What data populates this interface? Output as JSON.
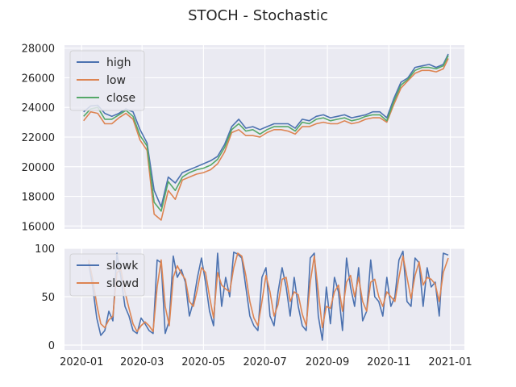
{
  "chart_data": [
    {
      "type": "line",
      "title": "STOCH - Stochastic",
      "xlabel": "",
      "ylabel": "",
      "xlim": [
        "2019-12-15",
        "2021-01-15"
      ],
      "ylim": [
        15800,
        28200
      ],
      "yticks": [
        16000,
        18000,
        20000,
        22000,
        24000,
        26000,
        28000
      ],
      "grid": true,
      "legend_position": "top-left",
      "x": [
        "2020-01-03",
        "2020-01-10",
        "2020-01-17",
        "2020-01-24",
        "2020-01-31",
        "2020-02-07",
        "2020-02-14",
        "2020-02-21",
        "2020-02-28",
        "2020-03-06",
        "2020-03-13",
        "2020-03-20",
        "2020-03-27",
        "2020-04-03",
        "2020-04-10",
        "2020-04-17",
        "2020-04-24",
        "2020-05-01",
        "2020-05-08",
        "2020-05-15",
        "2020-05-22",
        "2020-05-29",
        "2020-06-05",
        "2020-06-12",
        "2020-06-19",
        "2020-06-26",
        "2020-07-03",
        "2020-07-10",
        "2020-07-17",
        "2020-07-24",
        "2020-07-31",
        "2020-08-07",
        "2020-08-14",
        "2020-08-21",
        "2020-08-28",
        "2020-09-04",
        "2020-09-11",
        "2020-09-18",
        "2020-09-25",
        "2020-10-02",
        "2020-10-09",
        "2020-10-16",
        "2020-10-23",
        "2020-10-30",
        "2020-11-06",
        "2020-11-13",
        "2020-11-20",
        "2020-11-27",
        "2020-12-04",
        "2020-12-11",
        "2020-12-18",
        "2020-12-25",
        "2020-12-30"
      ],
      "series": [
        {
          "name": "high",
          "color": "#4c72b0",
          "values": [
            23700,
            24100,
            24150,
            23600,
            23400,
            23600,
            23900,
            23700,
            22500,
            21600,
            18400,
            17300,
            19300,
            18900,
            19600,
            19800,
            20000,
            20200,
            20400,
            20700,
            21500,
            22700,
            23200,
            22600,
            22700,
            22500,
            22700,
            22900,
            22900,
            22900,
            22600,
            23200,
            23100,
            23400,
            23500,
            23300,
            23400,
            23500,
            23300,
            23400,
            23500,
            23700,
            23700,
            23300,
            24600,
            25700,
            26000,
            26700,
            26800,
            26900,
            26700,
            26900,
            27600
          ]
        },
        {
          "name": "low",
          "color": "#dd8452",
          "values": [
            23100,
            23700,
            23600,
            22900,
            22900,
            23300,
            23600,
            23200,
            21800,
            21100,
            16800,
            16400,
            18400,
            17800,
            19100,
            19300,
            19500,
            19600,
            19800,
            20200,
            21000,
            22300,
            22500,
            22100,
            22100,
            22000,
            22300,
            22500,
            22500,
            22400,
            22200,
            22700,
            22700,
            22900,
            23000,
            22900,
            22900,
            23100,
            22900,
            23000,
            23200,
            23300,
            23300,
            23000,
            24200,
            25300,
            25800,
            26300,
            26500,
            26500,
            26400,
            26600,
            27300
          ]
        },
        {
          "name": "close",
          "color": "#55a868",
          "values": [
            23400,
            23900,
            24000,
            23200,
            23200,
            23500,
            23800,
            23400,
            22100,
            21400,
            17600,
            17000,
            19000,
            18400,
            19300,
            19600,
            19800,
            19900,
            20100,
            20500,
            21300,
            22500,
            22900,
            22400,
            22500,
            22200,
            22500,
            22700,
            22700,
            22700,
            22400,
            23000,
            22900,
            23200,
            23300,
            23100,
            23200,
            23300,
            23100,
            23200,
            23400,
            23500,
            23500,
            23100,
            24400,
            25500,
            25900,
            26500,
            26700,
            26700,
            26600,
            26800,
            27500
          ]
        }
      ]
    },
    {
      "type": "line",
      "xlabel": "",
      "ylabel": "",
      "xlim": [
        "2019-12-15",
        "2021-01-15"
      ],
      "ylim": [
        -5,
        100
      ],
      "yticks": [
        0,
        50,
        100
      ],
      "xticks": [
        "2020-01",
        "2020-03",
        "2020-05",
        "2020-07",
        "2020-09",
        "2020-11",
        "2021-01"
      ],
      "grid": true,
      "legend_position": "top-left",
      "x": [
        "2020-01-08",
        "2020-01-12",
        "2020-01-16",
        "2020-01-20",
        "2020-01-24",
        "2020-01-28",
        "2020-02-01",
        "2020-02-05",
        "2020-02-09",
        "2020-02-13",
        "2020-02-17",
        "2020-02-21",
        "2020-02-25",
        "2020-02-29",
        "2020-03-04",
        "2020-03-08",
        "2020-03-12",
        "2020-03-16",
        "2020-03-20",
        "2020-03-24",
        "2020-03-28",
        "2020-04-01",
        "2020-04-05",
        "2020-04-09",
        "2020-04-13",
        "2020-04-17",
        "2020-04-21",
        "2020-04-25",
        "2020-04-29",
        "2020-05-03",
        "2020-05-07",
        "2020-05-11",
        "2020-05-15",
        "2020-05-19",
        "2020-05-23",
        "2020-05-27",
        "2020-05-31",
        "2020-06-04",
        "2020-06-08",
        "2020-06-12",
        "2020-06-16",
        "2020-06-20",
        "2020-06-24",
        "2020-06-28",
        "2020-07-02",
        "2020-07-06",
        "2020-07-10",
        "2020-07-14",
        "2020-07-18",
        "2020-07-22",
        "2020-07-26",
        "2020-07-30",
        "2020-08-03",
        "2020-08-07",
        "2020-08-11",
        "2020-08-15",
        "2020-08-19",
        "2020-08-23",
        "2020-08-27",
        "2020-08-31",
        "2020-09-04",
        "2020-09-08",
        "2020-09-12",
        "2020-09-16",
        "2020-09-20",
        "2020-09-24",
        "2020-09-28",
        "2020-10-02",
        "2020-10-06",
        "2020-10-10",
        "2020-10-14",
        "2020-10-18",
        "2020-10-22",
        "2020-10-26",
        "2020-10-30",
        "2020-11-03",
        "2020-11-07",
        "2020-11-11",
        "2020-11-15",
        "2020-11-19",
        "2020-11-23",
        "2020-11-27",
        "2020-12-01",
        "2020-12-05",
        "2020-12-09",
        "2020-12-13",
        "2020-12-17",
        "2020-12-21",
        "2020-12-25",
        "2020-12-30"
      ],
      "series": [
        {
          "name": "slowk",
          "color": "#4c72b0",
          "values": [
            85,
            60,
            28,
            10,
            15,
            35,
            25,
            95,
            70,
            40,
            30,
            15,
            12,
            28,
            22,
            15,
            12,
            88,
            85,
            12,
            25,
            92,
            70,
            78,
            65,
            30,
            45,
            70,
            90,
            65,
            35,
            20,
            95,
            40,
            70,
            50,
            96,
            94,
            90,
            60,
            30,
            20,
            15,
            70,
            80,
            30,
            20,
            55,
            80,
            60,
            30,
            70,
            40,
            20,
            15,
            90,
            95,
            30,
            5,
            60,
            22,
            70,
            55,
            15,
            90,
            60,
            40,
            80,
            25,
            35,
            88,
            50,
            45,
            30,
            70,
            40,
            50,
            88,
            97,
            45,
            40,
            90,
            85,
            40,
            80,
            60,
            65,
            30,
            95,
            93
          ]
        },
        {
          "name": "slowd",
          "color": "#dd8452",
          "values": [
            88,
            68,
            42,
            22,
            18,
            26,
            30,
            75,
            78,
            55,
            38,
            22,
            14,
            20,
            24,
            20,
            14,
            60,
            88,
            40,
            20,
            70,
            82,
            74,
            68,
            45,
            40,
            58,
            80,
            75,
            50,
            28,
            75,
            62,
            58,
            55,
            80,
            95,
            92,
            72,
            45,
            28,
            20,
            45,
            72,
            55,
            30,
            42,
            68,
            70,
            45,
            55,
            52,
            32,
            20,
            65,
            92,
            55,
            18,
            40,
            38,
            55,
            62,
            35,
            65,
            72,
            50,
            70,
            45,
            35,
            65,
            68,
            50,
            40,
            55,
            50,
            45,
            70,
            92,
            70,
            48,
            72,
            86,
            62,
            70,
            68,
            63,
            45,
            75,
            90
          ]
        }
      ]
    }
  ]
}
